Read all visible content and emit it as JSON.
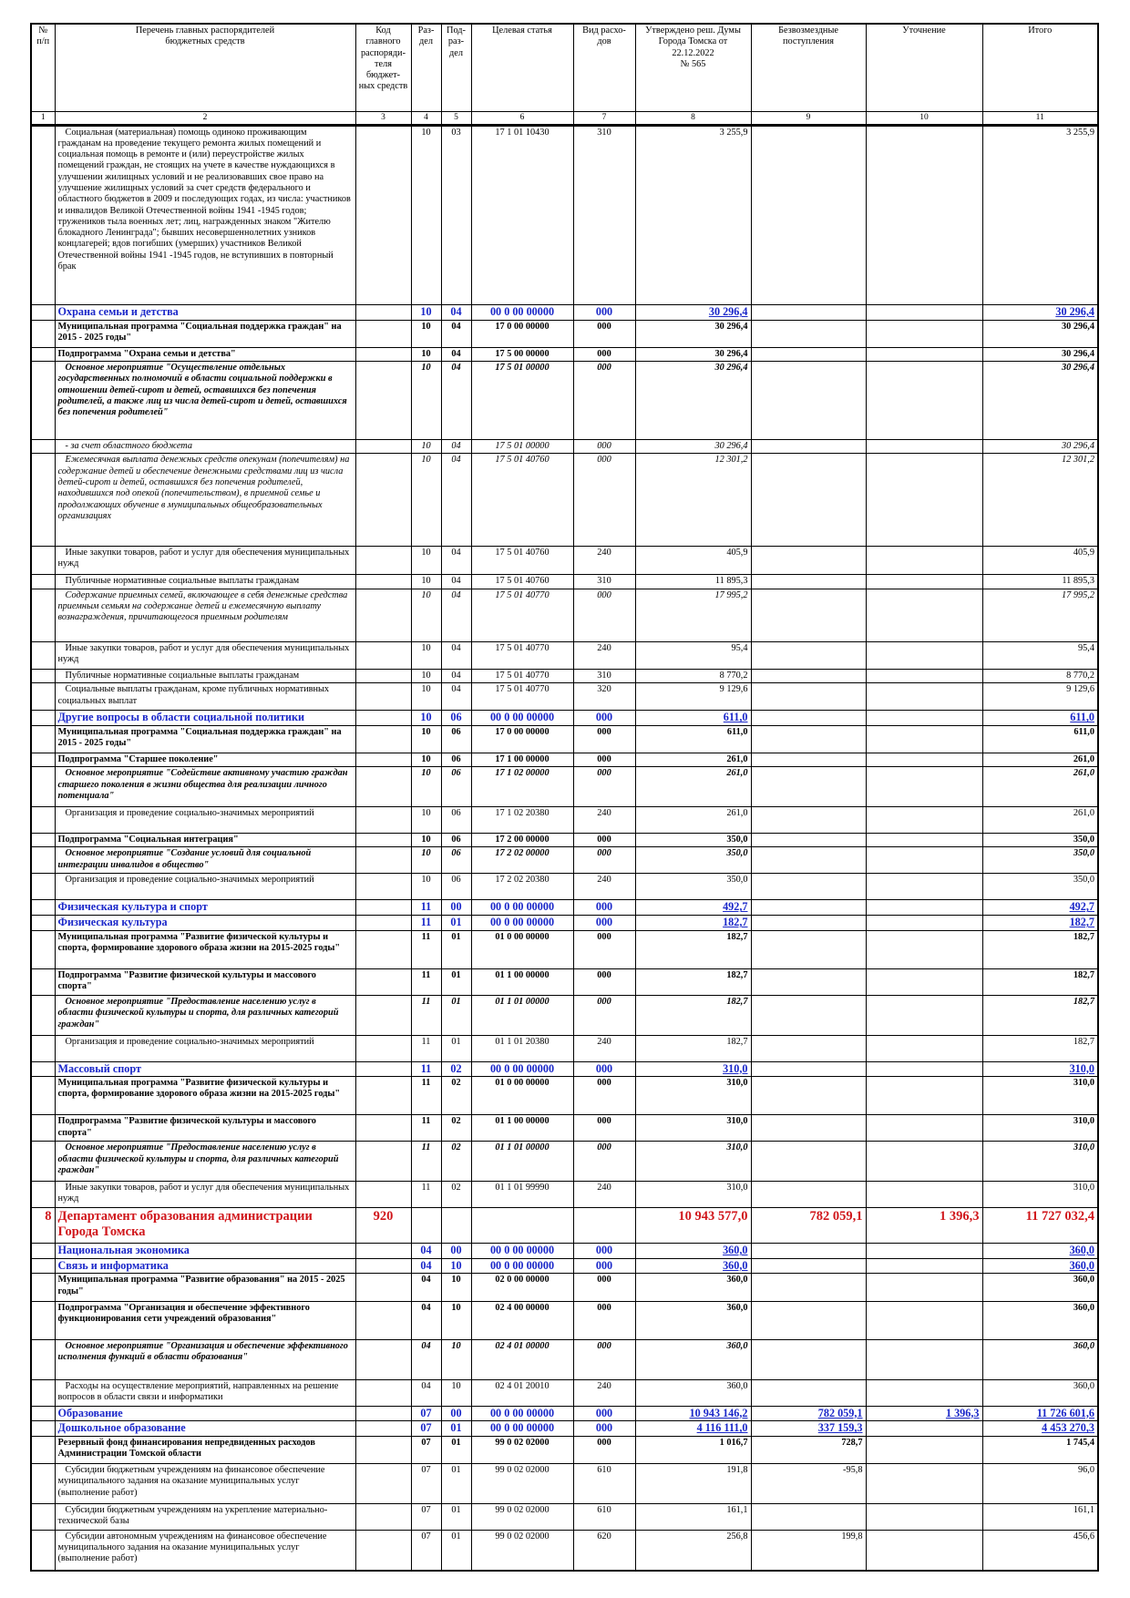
{
  "header": {
    "columns": [
      "№\nп/п",
      "Перечень главных распорядителей\nбюджетных средств",
      "Код главного\nраспоряди-\nтеля бюджет-\nных средств",
      "Раз-\nдел",
      "Под-\nраз-\nдел",
      "Целевая статья",
      "Вид расхо-\nдов",
      "Утверждено реш. Думы\nГорода Томска от 22.12.2022\n№ 565",
      "Безвозмездные поступления",
      "Уточнение",
      "Итого"
    ],
    "numbers": [
      "1",
      "2",
      "3",
      "4",
      "5",
      "6",
      "7",
      "8",
      "9",
      "10",
      "11"
    ]
  },
  "rows": [
    [
      null,
      "Социальная (материальная) помощь одиноко проживающим гражданам на проведение текущего ремонта жилых помещений и социальная помощь в ремонте и (или) переустройстве жилых помещений граждан, не стоящих на учете в качестве нуждающихся в улучшении жилищных условий и не реализовавших свое право на улучшение жилищных условий за счет средств федерального и областного бюджетов в 2009 и последующих годах, из числа: участников и инвалидов Великой Отечественной войны 1941 -1945 годов; тружеников тыла военных лет; лиц, награжденных знаком \"Жителю блокадного Ленинграда\"; бывших несовершеннолетних узников концлагерей; вдов погибших (умерших) участников Великой Отечественной войны 1941 -1945 годов, не вступивших в повторный брак",
      null,
      "10",
      "03",
      "17 1 01 10430",
      "310",
      "3 255,9",
      null,
      null,
      "3 255,9"
    ],
    [
      null,
      "Охрана семьи и детства",
      null,
      "10",
      "04",
      "00 0 00 00000",
      "000",
      "30 296,4",
      null,
      null,
      "30 296,4"
    ],
    [
      null,
      "Муниципальная программа \"Социальная поддержка граждан\" на 2015 - 2025 годы\"",
      null,
      "10",
      "04",
      "17 0 00 00000",
      "000",
      "30 296,4",
      null,
      null,
      "30 296,4"
    ],
    [
      null,
      "Подпрограмма \"Охрана семьи и детства\"",
      null,
      "10",
      "04",
      "17 5 00 00000",
      "000",
      "30 296,4",
      null,
      null,
      "30 296,4"
    ],
    [
      null,
      "Основное мероприятие \"Осуществление отдельных государственных полномочий в области социальной поддержки в отношении детей-сирот и детей, оставшихся без попечения родителей, а также лиц из числа детей-сирот и детей, оставшихся без попечения родителей\"",
      null,
      "10",
      "04",
      "17 5 01 00000",
      "000",
      "30 296,4",
      null,
      null,
      "30 296,4"
    ],
    [
      null,
      "- за счет областного бюджета",
      null,
      "10",
      "04",
      "17 5 01 00000",
      "000",
      "30 296,4",
      null,
      null,
      "30 296,4"
    ],
    [
      null,
      "Ежемесячная выплата денежных средств опекунам (попечителям) на содержание детей и обеспечение денежными средствами лиц из числа детей-сирот и детей, оставшихся без попечения родителей, находившихся под опекой (попечительством), в приемной семье и продолжающих обучение в муниципальных общеобразовательных организациях",
      null,
      "10",
      "04",
      "17 5 01 40760",
      "000",
      "12 301,2",
      null,
      null,
      "12 301,2"
    ],
    [
      null,
      "Иные закупки товаров, работ и услуг для обеспечения муниципальных нужд",
      null,
      "10",
      "04",
      "17 5 01 40760",
      "240",
      "405,9",
      null,
      null,
      "405,9"
    ],
    [
      null,
      "Публичные нормативные социальные выплаты гражданам",
      null,
      "10",
      "04",
      "17 5 01 40760",
      "310",
      "11 895,3",
      null,
      null,
      "11 895,3"
    ],
    [
      null,
      "Содержание приемных семей, включающее в себя денежные средства приемным семьям на содержание детей и ежемесячную выплату вознаграждения, причитающегося приемным родителям",
      null,
      "10",
      "04",
      "17 5 01 40770",
      "000",
      "17 995,2",
      null,
      null,
      "17 995,2"
    ],
    [
      null,
      "Иные закупки товаров, работ и услуг для обеспечения муниципальных нужд",
      null,
      "10",
      "04",
      "17 5 01 40770",
      "240",
      "95,4",
      null,
      null,
      "95,4"
    ],
    [
      null,
      "Публичные нормативные социальные выплаты гражданам",
      null,
      "10",
      "04",
      "17 5 01 40770",
      "310",
      "8 770,2",
      null,
      null,
      "8 770,2"
    ],
    [
      null,
      "Социальные выплаты гражданам, кроме публичных нормативных социальных выплат",
      null,
      "10",
      "04",
      "17 5 01 40770",
      "320",
      "9 129,6",
      null,
      null,
      "9 129,6"
    ],
    [
      null,
      "Другие вопросы в области социальной политики",
      null,
      "10",
      "06",
      "00 0 00 00000",
      "000",
      "611,0",
      null,
      null,
      "611,0"
    ],
    [
      null,
      "Муниципальная программа \"Социальная поддержка граждан\" на 2015 - 2025 годы\"",
      null,
      "10",
      "06",
      "17 0 00 00000",
      "000",
      "611,0",
      null,
      null,
      "611,0"
    ],
    [
      null,
      "Подпрограмма \"Старшее поколение\"",
      null,
      "10",
      "06",
      "17 1 00 00000",
      "000",
      "261,0",
      null,
      null,
      "261,0"
    ],
    [
      null,
      "Основное мероприятие \"Содействие активному участию граждан старшего поколения в жизни общества для реализации личного потенциала\"",
      null,
      "10",
      "06",
      "17 1 02 00000",
      "000",
      "261,0",
      null,
      null,
      "261,0"
    ],
    [
      null,
      "Организация и проведение социально-значимых мероприятий",
      null,
      "10",
      "06",
      "17 1 02 20380",
      "240",
      "261,0",
      null,
      null,
      "261,0"
    ],
    [
      null,
      "Подпрограмма \"Социальная интеграция\"",
      null,
      "10",
      "06",
      "17 2 00 00000",
      "000",
      "350,0",
      null,
      null,
      "350,0"
    ],
    [
      null,
      "Основное мероприятие \"Создание условий для социальной интеграции инвалидов в общество\"",
      null,
      "10",
      "06",
      "17 2 02 00000",
      "000",
      "350,0",
      null,
      null,
      "350,0"
    ],
    [
      null,
      "Организация и проведение социально-значимых мероприятий",
      null,
      "10",
      "06",
      "17 2 02 20380",
      "240",
      "350,0",
      null,
      null,
      "350,0"
    ],
    [
      null,
      "Физическая культура и спорт",
      null,
      "11",
      "00",
      "00 0 00 00000",
      "000",
      "492,7",
      null,
      null,
      "492,7"
    ],
    [
      null,
      "Физическая культура",
      null,
      "11",
      "01",
      "00 0 00 00000",
      "000",
      "182,7",
      null,
      null,
      "182,7"
    ],
    [
      null,
      "Муниципальная программа \"Развитие физической культуры и спорта, формирование здорового образа жизни на 2015-2025 годы\"",
      null,
      "11",
      "01",
      "01 0 00 00000",
      "000",
      "182,7",
      null,
      null,
      "182,7"
    ],
    [
      null,
      "Подпрограмма \"Развитие физической культуры и массового спорта\"",
      null,
      "11",
      "01",
      "01 1 00 00000",
      "000",
      "182,7",
      null,
      null,
      "182,7"
    ],
    [
      null,
      "Основное мероприятие \"Предоставление населению услуг в области физической культуры и спорта, для различных категорий граждан\"",
      null,
      "11",
      "01",
      "01 1 01 00000",
      "000",
      "182,7",
      null,
      null,
      "182,7"
    ],
    [
      null,
      "Организация и проведение социально-значимых мероприятий",
      null,
      "11",
      "01",
      "01 1 01 20380",
      "240",
      "182,7",
      null,
      null,
      "182,7"
    ],
    [
      null,
      "Массовый спорт",
      null,
      "11",
      "02",
      "00 0 00 00000",
      "000",
      "310,0",
      null,
      null,
      "310,0"
    ],
    [
      null,
      "Муниципальная программа \"Развитие физической культуры и спорта, формирование здорового образа жизни на 2015-2025 годы\"",
      null,
      "11",
      "02",
      "01 0 00 00000",
      "000",
      "310,0",
      null,
      null,
      "310,0"
    ],
    [
      null,
      "Подпрограмма \"Развитие физической культуры и массового спорта\"",
      null,
      "11",
      "02",
      "01 1 00 00000",
      "000",
      "310,0",
      null,
      null,
      "310,0"
    ],
    [
      null,
      "Основное мероприятие \"Предоставление населению услуг в области физической культуры и спорта, для различных категорий граждан\"",
      null,
      "11",
      "02",
      "01 1 01 00000",
      "000",
      "310,0",
      null,
      null,
      "310,0"
    ],
    [
      null,
      "Иные закупки товаров, работ и услуг для обеспечения муниципальных нужд",
      null,
      "11",
      "02",
      "01 1 01 99990",
      "240",
      "310,0",
      null,
      null,
      "310,0"
    ],
    [
      "8",
      "Департамент образования администрации Города Томска",
      "920",
      null,
      null,
      null,
      null,
      "10 943 577,0",
      "782 059,1",
      "1 396,3",
      "11 727 032,4"
    ],
    [
      null,
      "Национальная экономика",
      null,
      "04",
      "00",
      "00 0 00 00000",
      "000",
      "360,0",
      null,
      null,
      "360,0"
    ],
    [
      null,
      "Связь и информатика",
      null,
      "04",
      "10",
      "00 0 00 00000",
      "000",
      "360,0",
      null,
      null,
      "360,0"
    ],
    [
      null,
      "Муниципальная программа \"Развитие образования\" на 2015 - 2025 годы\"",
      null,
      "04",
      "10",
      "02 0 00 00000",
      "000",
      "360,0",
      null,
      null,
      "360,0"
    ],
    [
      null,
      "Подпрограмма \"Организация и обеспечение эффективного функционирования сети учреждений образования\"",
      null,
      "04",
      "10",
      "02 4 00 00000",
      "000",
      "360,0",
      null,
      null,
      "360,0"
    ],
    [
      null,
      "Основное мероприятие \"Организация и обеспечение эффективного исполнения функций в области образования\"",
      null,
      "04",
      "10",
      "02 4 01 00000",
      "000",
      "360,0",
      null,
      null,
      "360,0"
    ],
    [
      null,
      "Расходы на осуществление мероприятий, направленных на решение вопросов в области связи и информатики",
      null,
      "04",
      "10",
      "02 4 01 20010",
      "240",
      "360,0",
      null,
      null,
      "360,0"
    ],
    [
      null,
      "Образование",
      null,
      "07",
      "00",
      "00 0 00 00000",
      "000",
      "10 943 146,2",
      "782 059,1",
      "1 396,3",
      "11 726 601,6"
    ],
    [
      null,
      "Дошкольное образование",
      null,
      "07",
      "01",
      "00 0 00 00000",
      "000",
      "4 116 111,0",
      "337 159,3",
      null,
      "4 453 270,3"
    ],
    [
      null,
      "Резервный фонд финансирования непредвиденных расходов Администрации Томской области",
      null,
      "07",
      "01",
      "99 0 02 02000",
      "000",
      "1 016,7",
      "728,7",
      null,
      "1 745,4"
    ],
    [
      null,
      "Субсидии бюджетным учреждениям на финансовое обеспечение муниципального задания на оказание муниципальных услуг (выполнение работ)",
      null,
      "07",
      "01",
      "99 0 02 02000",
      "610",
      "191,8",
      "-95,8",
      null,
      "96,0"
    ],
    [
      null,
      "Субсидии бюджетным учреждениям на укрепление материально-технической базы",
      null,
      "07",
      "01",
      "99 0 02 02000",
      "610",
      "161,1",
      null,
      null,
      "161,1"
    ],
    [
      null,
      "Субсидии автономным учреждениям на финансовое обеспечение муниципального задания на оказание муниципальных услуг (выполнение работ)",
      null,
      "07",
      "01",
      "99 0 02 02000",
      "620",
      "256,8",
      "199,8",
      null,
      "456,6"
    ]
  ]
}
